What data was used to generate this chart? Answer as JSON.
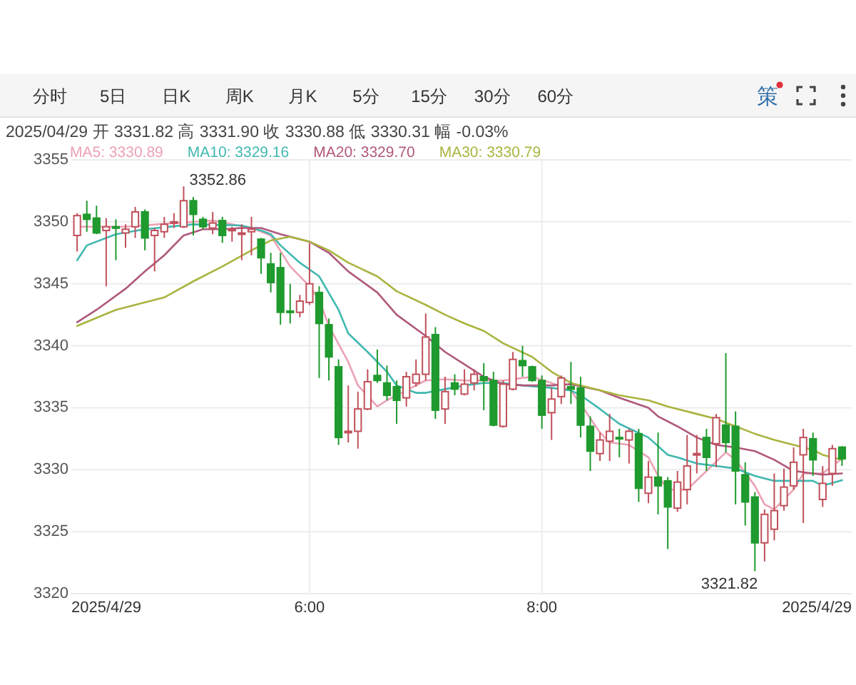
{
  "chart_data": {
    "type": "candlestick",
    "title": "2025/04/29 开 3331.82 高 3331.90 收 3330.88 低 3330.31 幅 -0.03%",
    "x": [
      "2025-04-29T04:00",
      "2025-04-29T04:05",
      "2025-04-29T04:10",
      "2025-04-29T04:15",
      "2025-04-29T04:20",
      "2025-04-29T04:25",
      "2025-04-29T04:30",
      "2025-04-29T04:35",
      "2025-04-29T04:40",
      "2025-04-29T04:45",
      "2025-04-29T04:50",
      "2025-04-29T04:55",
      "2025-04-29T05:00",
      "2025-04-29T05:05",
      "2025-04-29T05:10",
      "2025-04-29T05:15",
      "2025-04-29T05:20",
      "2025-04-29T05:25",
      "2025-04-29T05:30",
      "2025-04-29T05:35",
      "2025-04-29T05:40",
      "2025-04-29T05:45",
      "2025-04-29T05:50",
      "2025-04-29T05:55",
      "2025-04-29T06:00",
      "2025-04-29T06:05",
      "2025-04-29T06:10",
      "2025-04-29T06:15",
      "2025-04-29T06:20",
      "2025-04-29T06:25",
      "2025-04-29T06:30",
      "2025-04-29T06:35",
      "2025-04-29T06:40",
      "2025-04-29T06:45",
      "2025-04-29T06:50",
      "2025-04-29T06:55",
      "2025-04-29T07:00",
      "2025-04-29T07:05",
      "2025-04-29T07:10",
      "2025-04-29T07:15",
      "2025-04-29T07:20",
      "2025-04-29T07:25",
      "2025-04-29T07:30",
      "2025-04-29T07:35",
      "2025-04-29T07:40",
      "2025-04-29T07:45",
      "2025-04-29T07:50",
      "2025-04-29T07:55",
      "2025-04-29T08:00",
      "2025-04-29T08:05",
      "2025-04-29T08:10",
      "2025-04-29T08:15",
      "2025-04-29T08:20",
      "2025-04-29T08:25",
      "2025-04-29T08:30",
      "2025-04-29T08:35",
      "2025-04-29T08:40",
      "2025-04-29T08:45",
      "2025-04-29T08:50",
      "2025-04-29T08:55",
      "2025-04-29T09:00",
      "2025-04-29T09:05",
      "2025-04-29T09:10",
      "2025-04-29T09:15",
      "2025-04-29T09:20",
      "2025-04-29T09:25",
      "2025-04-29T09:30",
      "2025-04-29T09:35",
      "2025-04-29T09:40",
      "2025-04-29T09:45",
      "2025-04-29T09:50",
      "2025-04-29T09:55",
      "2025-04-29T10:00",
      "2025-04-29T10:05",
      "2025-04-29T10:10",
      "2025-04-29T10:15",
      "2025-04-29T10:20",
      "2025-04-29T10:25",
      "2025-04-29T10:30",
      "2025-04-29T10:35"
    ],
    "ohlc": [
      [
        3348.9,
        3350.7,
        3347.6,
        3350.5
      ],
      [
        3350.6,
        3351.7,
        3349.2,
        3350.2
      ],
      [
        3350.3,
        3351.3,
        3349.0,
        3349.1
      ],
      [
        3349.3,
        3350.3,
        3344.8,
        3349.6
      ],
      [
        3349.6,
        3350.2,
        3346.9,
        3349.5
      ],
      [
        3349.1,
        3349.8,
        3347.9,
        3349.4
      ],
      [
        3349.6,
        3351.2,
        3348.7,
        3350.8
      ],
      [
        3350.8,
        3351.0,
        3347.7,
        3348.7
      ],
      [
        3348.9,
        3349.5,
        3346.0,
        3349.3
      ],
      [
        3349.2,
        3350.4,
        3348.7,
        3349.8
      ],
      [
        3349.9,
        3350.7,
        3349.5,
        3350.0
      ],
      [
        3349.6,
        3352.86,
        3349.5,
        3351.7
      ],
      [
        3351.7,
        3352.0,
        3348.9,
        3350.6
      ],
      [
        3350.2,
        3350.4,
        3349.4,
        3349.6
      ],
      [
        3349.5,
        3350.8,
        3349.0,
        3349.9
      ],
      [
        3350.1,
        3350.4,
        3348.3,
        3348.9
      ],
      [
        3349.3,
        3349.6,
        3348.4,
        3349.4
      ],
      [
        3349.0,
        3349.8,
        3346.9,
        3349.1
      ],
      [
        3349.2,
        3350.4,
        3347.3,
        3349.4
      ],
      [
        3348.6,
        3348.7,
        3345.8,
        3347.1
      ],
      [
        3346.6,
        3347.5,
        3344.3,
        3345.1
      ],
      [
        3346.3,
        3347.5,
        3341.7,
        3342.7
      ],
      [
        3342.8,
        3345.0,
        3341.8,
        3342.7
      ],
      [
        3342.7,
        3344.1,
        3342.3,
        3343.6
      ],
      [
        3343.5,
        3348.3,
        3343.3,
        3345.0
      ],
      [
        3344.3,
        3344.8,
        3337.4,
        3341.8
      ],
      [
        3341.7,
        3342.2,
        3337.2,
        3339.1
      ],
      [
        3338.3,
        3338.9,
        3332.0,
        3332.6
      ],
      [
        3333.0,
        3336.8,
        3332.2,
        3333.1
      ],
      [
        3333.1,
        3336.3,
        3331.7,
        3334.9
      ],
      [
        3334.9,
        3338.1,
        3334.8,
        3337.1
      ],
      [
        3337.6,
        3339.7,
        3337.0,
        3337.2
      ],
      [
        3337.0,
        3338.4,
        3335.6,
        3336.0
      ],
      [
        3336.7,
        3337.2,
        3333.7,
        3335.6
      ],
      [
        3335.8,
        3337.9,
        3335.1,
        3337.5
      ],
      [
        3337.0,
        3338.9,
        3336.7,
        3337.7
      ],
      [
        3337.7,
        3342.6,
        3337.2,
        3340.7
      ],
      [
        3340.9,
        3341.5,
        3334.1,
        3334.8
      ],
      [
        3334.9,
        3337.5,
        3333.7,
        3336.3
      ],
      [
        3337.0,
        3337.7,
        3336.0,
        3336.5
      ],
      [
        3336.1,
        3338.1,
        3336.0,
        3336.9
      ],
      [
        3337.0,
        3338.1,
        3336.4,
        3337.7
      ],
      [
        3337.5,
        3338.6,
        3334.8,
        3337.2
      ],
      [
        3337.2,
        3337.9,
        3333.5,
        3333.6
      ],
      [
        3333.5,
        3337.2,
        3333.4,
        3336.9
      ],
      [
        3336.5,
        3339.5,
        3336.4,
        3338.9
      ],
      [
        3338.8,
        3340.0,
        3337.5,
        3338.4
      ],
      [
        3338.3,
        3338.4,
        3337.1,
        3337.2
      ],
      [
        3337.2,
        3337.6,
        3333.3,
        3334.4
      ],
      [
        3334.6,
        3336.6,
        3332.4,
        3335.7
      ],
      [
        3335.9,
        3337.6,
        3335.3,
        3337.4
      ],
      [
        3336.7,
        3338.7,
        3335.3,
        3336.5
      ],
      [
        3336.6,
        3337.5,
        3332.6,
        3333.6
      ],
      [
        3333.5,
        3334.3,
        3329.9,
        3331.5
      ],
      [
        3331.3,
        3333.0,
        3330.7,
        3332.4
      ],
      [
        3332.3,
        3334.5,
        3330.7,
        3333.1
      ],
      [
        3332.6,
        3333.3,
        3331.0,
        3332.5
      ],
      [
        3332.4,
        3333.3,
        3330.5,
        3333.1
      ],
      [
        3332.9,
        3333.3,
        3327.4,
        3328.5
      ],
      [
        3328.1,
        3330.7,
        3327.3,
        3329.4
      ],
      [
        3329.4,
        3333.0,
        3326.4,
        3328.7
      ],
      [
        3329.1,
        3329.4,
        3323.6,
        3327.0
      ],
      [
        3326.9,
        3329.9,
        3326.6,
        3329.0
      ],
      [
        3328.4,
        3332.8,
        3327.2,
        3330.3
      ],
      [
        3331.2,
        3332.8,
        3329.7,
        3331.3
      ],
      [
        3332.6,
        3333.3,
        3329.9,
        3331.0
      ],
      [
        3332.1,
        3334.5,
        3330.2,
        3334.2
      ],
      [
        3333.6,
        3339.4,
        3331.4,
        3332.2
      ],
      [
        3333.5,
        3334.7,
        3327.2,
        3329.9
      ],
      [
        3329.6,
        3330.6,
        3325.5,
        3327.4
      ],
      [
        3327.8,
        3328.2,
        3321.82,
        3324.1
      ],
      [
        3324.1,
        3326.8,
        3322.6,
        3326.4
      ],
      [
        3325.2,
        3329.7,
        3324.3,
        3326.7
      ],
      [
        3327.1,
        3330.1,
        3326.7,
        3328.6
      ],
      [
        3328.7,
        3331.8,
        3328.4,
        3330.6
      ],
      [
        3331.2,
        3333.3,
        3325.7,
        3332.6
      ],
      [
        3332.5,
        3333.0,
        3329.5,
        3330.8
      ],
      [
        3327.6,
        3330.3,
        3327.0,
        3328.9
      ],
      [
        3329.7,
        3332.0,
        3328.7,
        3331.7
      ],
      [
        3331.82,
        3331.9,
        3330.31,
        3330.88
      ]
    ],
    "colors": [
      "#c0505a",
      "#1f9a2e",
      "#1f9a2e",
      "#c0505a",
      "#1f9a2e",
      "#c0505a",
      "#c0505a",
      "#1f9a2e",
      "#c0505a",
      "#c0505a",
      "#c0505a",
      "#c0505a",
      "#1f9a2e",
      "#1f9a2e",
      "#c0505a",
      "#1f9a2e",
      "#c0505a",
      "#c0505a",
      "#c0505a",
      "#1f9a2e",
      "#1f9a2e",
      "#1f9a2e",
      "#1f9a2e",
      "#c0505a",
      "#c0505a",
      "#1f9a2e",
      "#1f9a2e",
      "#1f9a2e",
      "#c0505a",
      "#c0505a",
      "#c0505a",
      "#1f9a2e",
      "#1f9a2e",
      "#1f9a2e",
      "#c0505a",
      "#c0505a",
      "#c0505a",
      "#1f9a2e",
      "#c0505a",
      "#1f9a2e",
      "#c0505a",
      "#c0505a",
      "#1f9a2e",
      "#1f9a2e",
      "#c0505a",
      "#c0505a",
      "#1f9a2e",
      "#1f9a2e",
      "#1f9a2e",
      "#c0505a",
      "#c0505a",
      "#1f9a2e",
      "#1f9a2e",
      "#1f9a2e",
      "#c0505a",
      "#c0505a",
      "#1f9a2e",
      "#c0505a",
      "#1f9a2e",
      "#c0505a",
      "#1f9a2e",
      "#1f9a2e",
      "#c0505a",
      "#c0505a",
      "#c0505a",
      "#1f9a2e",
      "#c0505a",
      "#1f9a2e",
      "#1f9a2e",
      "#1f9a2e",
      "#1f9a2e",
      "#c0505a",
      "#c0505a",
      "#c0505a",
      "#c0505a",
      "#c0505a",
      "#1f9a2e",
      "#c0505a",
      "#c0505a",
      "#1f9a2e"
    ],
    "series": [
      {
        "type": "line",
        "name": "MA5: 3330.89",
        "color": "#eba2b4",
        "x": [
          "2025-04-29T04:00",
          "2025-04-29T04:25",
          "2025-04-29T04:50",
          "2025-04-29T05:10",
          "2025-04-29T05:30",
          "2025-04-29T05:40",
          "2025-04-29T05:50",
          "2025-04-29T06:00",
          "2025-04-29T06:05",
          "2025-04-29T06:10",
          "2025-04-29T06:20",
          "2025-04-29T06:25",
          "2025-04-29T06:35",
          "2025-04-29T06:40",
          "2025-04-29T06:50",
          "2025-04-29T07:00",
          "2025-04-29T07:10",
          "2025-04-29T07:20",
          "2025-04-29T07:40",
          "2025-04-29T07:55",
          "2025-04-29T08:05",
          "2025-04-29T08:15",
          "2025-04-29T08:20",
          "2025-04-29T08:30",
          "2025-04-29T08:35",
          "2025-04-29T08:45",
          "2025-04-29T08:55",
          "2025-04-29T09:00",
          "2025-04-29T09:05",
          "2025-04-29T09:15",
          "2025-04-29T09:25",
          "2025-04-29T09:35",
          "2025-04-29T09:40",
          "2025-04-29T09:50",
          "2025-04-29T09:55",
          "2025-04-29T10:00",
          "2025-04-29T10:10",
          "2025-04-29T10:15",
          "2025-04-29T10:25",
          "2025-04-29T10:30",
          "2025-04-29T10:35"
        ],
        "values": [
          3349.6,
          3349.6,
          3349.9,
          3350.1,
          3349.5,
          3348.9,
          3346.4,
          3344.8,
          3343.7,
          3341.6,
          3338.7,
          3336.8,
          3335.1,
          3335.6,
          3336.4,
          3337.2,
          3337.3,
          3337.2,
          3337.2,
          3337.5,
          3337.0,
          3336.4,
          3335.3,
          3333.0,
          3332.2,
          3332.0,
          3331.0,
          3329.5,
          3328.4,
          3328.4,
          3329.9,
          3331.4,
          3330.8,
          3328.7,
          3327.2,
          3326.8,
          3328.4,
          3329.7,
          3329.7,
          3330.3,
          3330.89
        ]
      },
      {
        "type": "line",
        "name": "MA10: 3329.16",
        "color": "#40b8b0",
        "x": [
          "2025-04-29T04:00",
          "2025-04-29T04:05",
          "2025-04-29T04:20",
          "2025-04-29T04:35",
          "2025-04-29T05:00",
          "2025-04-29T05:25",
          "2025-04-29T05:35",
          "2025-04-29T05:40",
          "2025-04-29T05:45",
          "2025-04-29T05:55",
          "2025-04-29T06:05",
          "2025-04-29T06:15",
          "2025-04-29T06:20",
          "2025-04-29T06:30",
          "2025-04-29T06:40",
          "2025-04-29T06:45",
          "2025-04-29T06:55",
          "2025-04-29T07:00",
          "2025-04-29T07:10",
          "2025-04-29T07:20",
          "2025-04-29T07:30",
          "2025-04-29T07:40",
          "2025-04-29T07:50",
          "2025-04-29T08:05",
          "2025-04-29T08:15",
          "2025-04-29T08:20",
          "2025-04-29T08:30",
          "2025-04-29T08:40",
          "2025-04-29T08:55",
          "2025-04-29T09:05",
          "2025-04-29T09:10",
          "2025-04-29T09:20",
          "2025-04-29T09:30",
          "2025-04-29T09:40",
          "2025-04-29T09:50",
          "2025-04-29T10:00",
          "2025-04-29T10:10",
          "2025-04-29T10:20",
          "2025-04-29T10:25",
          "2025-04-29T10:35"
        ],
        "values": [
          3346.9,
          3348.1,
          3349.0,
          3349.4,
          3349.8,
          3349.7,
          3349.3,
          3349.0,
          3348.1,
          3346.7,
          3345.6,
          3342.9,
          3341.0,
          3339.5,
          3337.9,
          3336.8,
          3336.2,
          3336.2,
          3336.5,
          3336.8,
          3337.0,
          3337.0,
          3336.8,
          3336.6,
          3336.4,
          3336.0,
          3334.9,
          3333.7,
          3332.6,
          3331.2,
          3331.0,
          3330.5,
          3330.3,
          3330.1,
          3329.5,
          3329.1,
          3329.1,
          3329.1,
          3328.7,
          3329.16
        ]
      },
      {
        "type": "line",
        "name": "MA20: 3329.70",
        "color": "#b0587c",
        "x": [
          "2025-04-29T04:00",
          "2025-04-29T04:10",
          "2025-04-29T04:25",
          "2025-04-29T04:35",
          "2025-04-29T04:45",
          "2025-04-29T04:55",
          "2025-04-29T05:05",
          "2025-04-29T05:15",
          "2025-04-29T05:25",
          "2025-04-29T05:35",
          "2025-04-29T05:45",
          "2025-04-29T06:00",
          "2025-04-29T06:10",
          "2025-04-29T06:20",
          "2025-04-29T06:35",
          "2025-04-29T06:45",
          "2025-04-29T07:00",
          "2025-04-29T07:10",
          "2025-04-29T07:20",
          "2025-04-29T07:30",
          "2025-04-29T07:40",
          "2025-04-29T07:50",
          "2025-04-29T08:05",
          "2025-04-29T08:15",
          "2025-04-29T08:30",
          "2025-04-29T08:40",
          "2025-04-29T08:55",
          "2025-04-29T09:00",
          "2025-04-29T09:10",
          "2025-04-29T09:20",
          "2025-04-29T09:30",
          "2025-04-29T09:40",
          "2025-04-29T09:50",
          "2025-04-29T10:00",
          "2025-04-29T10:10",
          "2025-04-29T10:20",
          "2025-04-29T10:25",
          "2025-04-29T10:35"
        ],
        "values": [
          3341.9,
          3342.9,
          3344.6,
          3346.0,
          3347.3,
          3348.9,
          3349.4,
          3349.4,
          3349.5,
          3349.5,
          3349.0,
          3348.4,
          3347.5,
          3346.0,
          3344.3,
          3342.5,
          3340.8,
          3339.5,
          3338.5,
          3337.5,
          3336.9,
          3336.8,
          3336.8,
          3336.9,
          3336.4,
          3335.8,
          3335.0,
          3334.3,
          3333.5,
          3332.6,
          3332.0,
          3331.8,
          3331.5,
          3330.8,
          3329.9,
          3329.7,
          3329.6,
          3329.7
        ]
      },
      {
        "type": "line",
        "name": "MA30: 3330.79",
        "color": "#aab440",
        "x": [
          "2025-04-29T04:00",
          "2025-04-29T04:20",
          "2025-04-29T04:45",
          "2025-04-29T05:00",
          "2025-04-29T05:15",
          "2025-04-29T05:30",
          "2025-04-29T05:40",
          "2025-04-29T05:50",
          "2025-04-29T06:00",
          "2025-04-29T06:10",
          "2025-04-29T06:20",
          "2025-04-29T06:35",
          "2025-04-29T06:45",
          "2025-04-29T07:00",
          "2025-04-29T07:10",
          "2025-04-29T07:20",
          "2025-04-29T07:30",
          "2025-04-29T07:40",
          "2025-04-29T07:55",
          "2025-04-29T08:05",
          "2025-04-29T08:15",
          "2025-04-29T08:30",
          "2025-04-29T08:40",
          "2025-04-29T08:55",
          "2025-04-29T09:05",
          "2025-04-29T09:20",
          "2025-04-29T09:30",
          "2025-04-29T09:40",
          "2025-04-29T09:50",
          "2025-04-29T10:00",
          "2025-04-29T10:10",
          "2025-04-29T10:20",
          "2025-04-29T10:25",
          "2025-04-29T10:35"
        ],
        "values": [
          3341.6,
          3342.9,
          3343.9,
          3345.2,
          3346.4,
          3347.7,
          3348.5,
          3348.8,
          3348.4,
          3347.7,
          3346.7,
          3345.6,
          3344.4,
          3343.3,
          3342.5,
          3341.8,
          3341.2,
          3340.2,
          3339.1,
          3337.9,
          3337.0,
          3336.4,
          3336.0,
          3335.6,
          3335.1,
          3334.5,
          3334.1,
          3333.5,
          3332.9,
          3332.4,
          3332.0,
          3331.6,
          3331.2,
          3330.79
        ]
      }
    ],
    "xlim": [
      "2025-04-29T03:57",
      "2025-04-29T10:40"
    ],
    "xticks": [
      {
        "value": "2025-04-29T06:00",
        "label": "6:00"
      },
      {
        "value": "2025-04-29T08:00",
        "label": "8:00"
      }
    ],
    "ylim": [
      3320,
      3355
    ],
    "yticks": [
      3320,
      3325,
      3330,
      3335,
      3340,
      3345,
      3350,
      3355
    ],
    "grid": true,
    "legend": "top left",
    "annotations": [
      "分时",
      "5日",
      "日K",
      "周K",
      "月K",
      "5分",
      "15分",
      "30分",
      "60分",
      "策",
      {
        "text": "3352.86",
        "x": "2025-04-29T04:55",
        "y": 3352.86
      },
      {
        "text": "3321.82",
        "x": "2025-04-29T09:50",
        "y": 3321.82
      },
      "2025/4/29",
      "2025/4/29"
    ]
  }
}
